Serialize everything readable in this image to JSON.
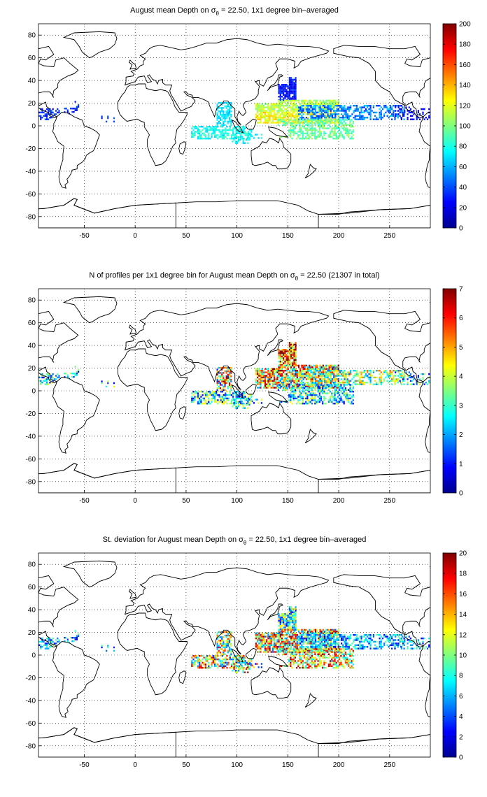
{
  "panels": [
    {
      "id": "mean",
      "title_pre": "August mean Depth on ",
      "title_sigma": "σ",
      "title_sub": "θ",
      "title_post": " = 22.50, 1x1 degree bin–averaged",
      "colorbar": {
        "min": 0,
        "max": 200,
        "ticks": [
          0,
          20,
          40,
          60,
          80,
          100,
          120,
          140,
          160,
          180,
          200
        ]
      },
      "pattern": "mean"
    },
    {
      "id": "count",
      "title_pre": "N of profiles per 1x1 degree bin for August mean Depth on ",
      "title_sigma": "σ",
      "title_sub": "θ",
      "title_post": " = 22.50 (21307 in total)",
      "colorbar": {
        "min": 0,
        "max": 7,
        "ticks": [
          0,
          1,
          2,
          3,
          4,
          5,
          6,
          7
        ]
      },
      "pattern": "count"
    },
    {
      "id": "std",
      "title_pre": "St. deviation for August mean Depth on ",
      "title_sigma": "σ",
      "title_sub": "θ",
      "title_post": " = 22.50, 1x1 degree bin–averaged",
      "colorbar": {
        "min": 0,
        "max": 20,
        "ticks": [
          0,
          2,
          4,
          6,
          8,
          10,
          12,
          14,
          16,
          18,
          20
        ]
      },
      "pattern": "std"
    }
  ],
  "map": {
    "lon_range": [
      -95,
      290
    ],
    "lat_range": [
      -90,
      90
    ],
    "lon_ticks": [
      -50,
      0,
      50,
      100,
      150,
      200,
      250
    ],
    "lat_ticks": [
      -80,
      -60,
      -40,
      -20,
      0,
      20,
      40,
      60,
      80
    ],
    "grid": "dotted",
    "colormap": "jet"
  },
  "colors": {
    "coast": "#000000",
    "background": "#ffffff"
  }
}
